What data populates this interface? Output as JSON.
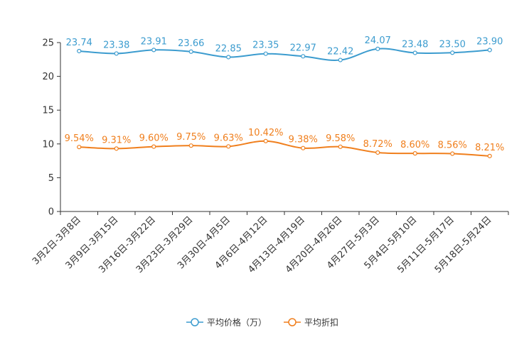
{
  "chart_data": {
    "type": "line",
    "title": "",
    "xlabel": "",
    "ylabel": "",
    "ylim": [
      0,
      25
    ],
    "yticks": [
      0,
      5,
      10,
      15,
      20,
      25
    ],
    "grid": false,
    "legend_position": "bottom-center",
    "categories": [
      "3月2日-3月8日",
      "3月9日-3月15日",
      "3月16日-3月22日",
      "3月23日-3月29日",
      "3月30日-4月5日",
      "4月6日-4月12日",
      "4月13日-4月19日",
      "4月20日-4月26日",
      "4月27日-5月3日",
      "5月4日-5月10日",
      "5月11日-5月17日",
      "5月18日-5月24日"
    ],
    "series": [
      {
        "name": "平均价格（万）",
        "color": "#3c9ccf",
        "values": [
          23.74,
          23.38,
          23.91,
          23.66,
          22.85,
          23.35,
          22.97,
          22.42,
          24.07,
          23.48,
          23.5,
          23.9
        ],
        "labels": [
          "23.74",
          "23.38",
          "23.91",
          "23.66",
          "22.85",
          "23.35",
          "22.97",
          "22.42",
          "24.07",
          "23.48",
          "23.50",
          "23.90"
        ]
      },
      {
        "name": "平均折扣",
        "color": "#f07f1d",
        "values": [
          9.54,
          9.31,
          9.6,
          9.75,
          9.63,
          10.42,
          9.38,
          9.58,
          8.72,
          8.6,
          8.56,
          8.21
        ],
        "labels": [
          "9.54%",
          "9.31%",
          "9.60%",
          "9.75%",
          "9.63%",
          "10.42%",
          "9.38%",
          "9.58%",
          "8.72%",
          "8.60%",
          "8.56%",
          "8.21%"
        ]
      }
    ]
  }
}
